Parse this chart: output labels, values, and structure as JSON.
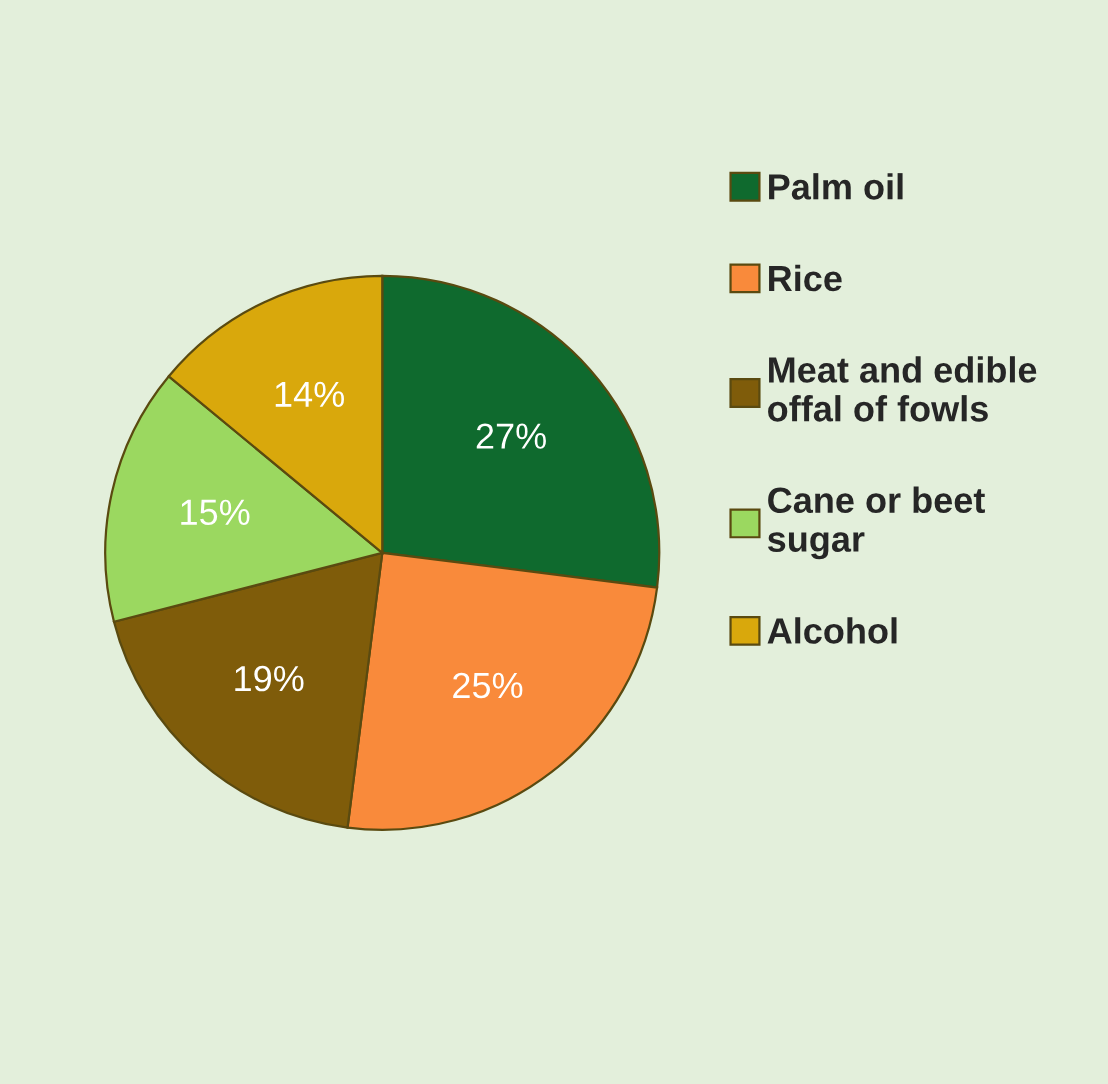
{
  "chart_data": {
    "type": "pie",
    "categories": [
      "Palm oil",
      "Rice",
      "Meat and edible\noffal of fowls",
      "Cane or beet\nsugar",
      "Alcohol"
    ],
    "values": [
      27,
      25,
      19,
      15,
      14
    ],
    "value_labels": [
      "27%",
      "25%",
      "19%",
      "15%",
      "14%"
    ],
    "colors": [
      "#0f6a2e",
      "#f98a3b",
      "#7f5c0a",
      "#9bd860",
      "#d9a80c"
    ],
    "legend": "right"
  }
}
